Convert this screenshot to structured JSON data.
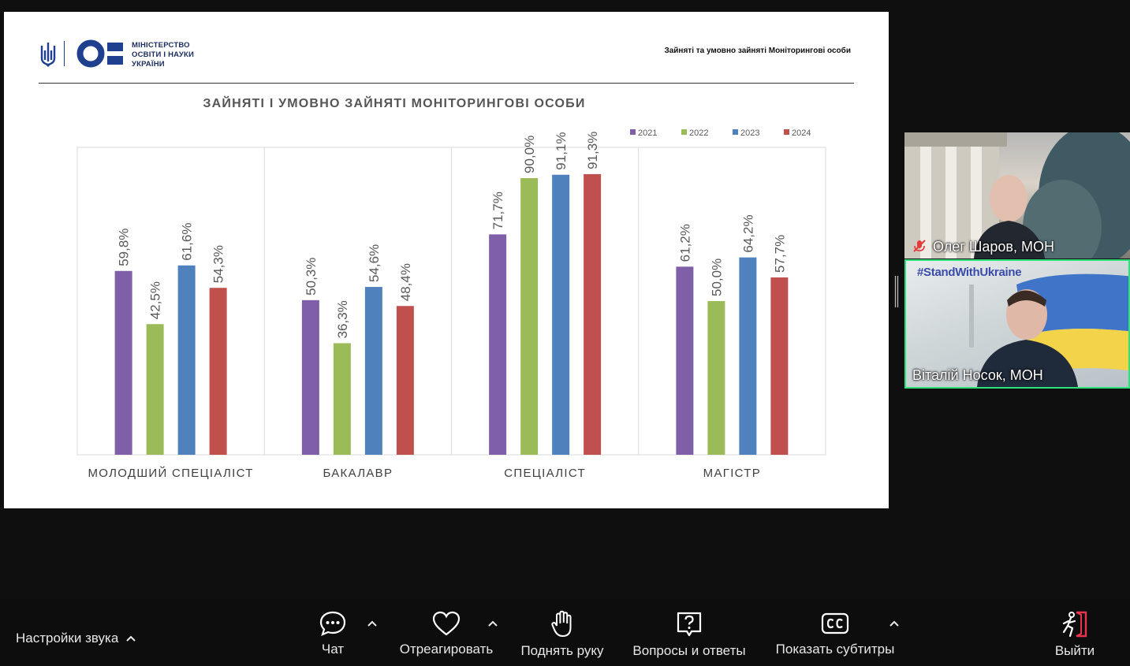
{
  "slide": {
    "logo_text": [
      "МІНІСТЕРСТВО",
      "ОСВІТИ І НАУКИ",
      "УКРАЇНИ"
    ],
    "header_right": "Зайняті та умовно зайняті Моніторингові особи"
  },
  "chart_data": {
    "type": "bar",
    "title": "ЗАЙНЯТІ І УМОВНО ЗАЙНЯТІ МОНІТОРИНГОВІ ОСОБИ",
    "categories": [
      "МОЛОДШИЙ СПЕЦІАЛІСТ",
      "БАКАЛАВР",
      "СПЕЦІАЛІСТ",
      "МАГІСТР"
    ],
    "series": [
      {
        "name": "2021",
        "color": "#7f60a8",
        "values": [
          59.8,
          50.3,
          71.7,
          61.2
        ],
        "labels": [
          "59,8%",
          "50,3%",
          "71,7%",
          "61,2%"
        ]
      },
      {
        "name": "2022",
        "color": "#9bbb59",
        "values": [
          42.5,
          36.3,
          90.0,
          50.0
        ],
        "labels": [
          "42,5%",
          "36,3%",
          "90,0%",
          "50,0%"
        ]
      },
      {
        "name": "2023",
        "color": "#4f81bd",
        "values": [
          61.6,
          54.6,
          91.1,
          64.2
        ],
        "labels": [
          "61,6%",
          "54,6%",
          "91,1%",
          "64,2%"
        ]
      },
      {
        "name": "2024",
        "color": "#c0504d",
        "values": [
          54.3,
          48.4,
          91.3,
          57.7
        ],
        "labels": [
          "54,3%",
          "48,4%",
          "91,3%",
          "57,7%"
        ]
      }
    ],
    "ylim": [
      0,
      100
    ],
    "legend": "top-right",
    "grid": false
  },
  "participants": [
    {
      "name": "Олег Шаров, МОН",
      "muted": true
    },
    {
      "name": "Віталій Носок, МОН",
      "muted": false,
      "hashtag": "#StandWithUkraine"
    }
  ],
  "toolbar": {
    "audio_settings": "Настройки звука",
    "buttons": [
      {
        "id": "chat",
        "label": "Чат",
        "icon": "chat-icon"
      },
      {
        "id": "react",
        "label": "Отреагировать",
        "icon": "heart-icon"
      },
      {
        "id": "raise",
        "label": "Поднять руку",
        "icon": "hand-icon"
      },
      {
        "id": "qa",
        "label": "Вопросы и ответы",
        "icon": "question-icon"
      },
      {
        "id": "cc",
        "label": "Показать субтитры",
        "icon": "cc-icon"
      },
      {
        "id": "leave",
        "label": "Выйти",
        "icon": "exit-icon"
      }
    ]
  }
}
